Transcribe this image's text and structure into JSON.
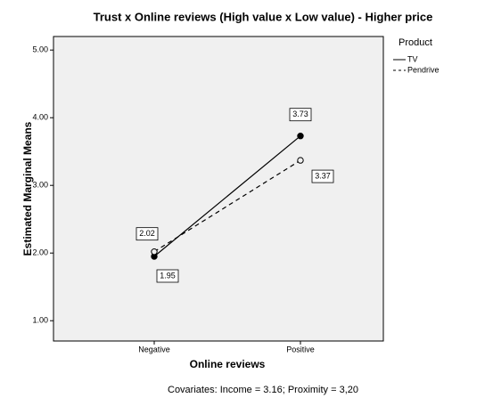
{
  "chart_data": {
    "type": "line",
    "title": "Trust x Online reviews (High value x Low value) - Higher price",
    "x_label": "Online reviews",
    "y_label": "Estimated Marginal Means",
    "footnote": "Covariates: Income = 3.16; Proximity = 3,20",
    "legend_title": "Product",
    "legend_position": "right",
    "categories": [
      "Negative",
      "Positive"
    ],
    "series": [
      {
        "name": "TV",
        "color": "#000000",
        "dash": "solid",
        "marker": "filled",
        "values": [
          1.95,
          3.73
        ]
      },
      {
        "name": "Pendrive",
        "color": "#000000",
        "dash": "dashed",
        "marker": "open",
        "values": [
          2.02,
          3.37
        ]
      }
    ],
    "ylim": [
      0.7,
      5.2
    ],
    "yticks": [
      {
        "value": 1,
        "label": "1.00"
      },
      {
        "value": 2,
        "label": "2.00"
      },
      {
        "value": 3,
        "label": "3.00"
      },
      {
        "value": 4,
        "label": "4.00"
      },
      {
        "value": 5,
        "label": "5.00"
      }
    ]
  }
}
